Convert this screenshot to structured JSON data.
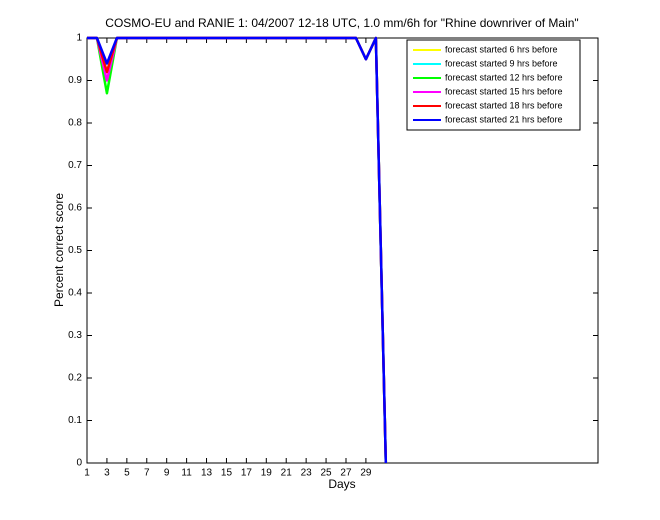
{
  "chart_data": {
    "type": "line",
    "title": "COSMO-EU and RANIE 1: 04/2007 12-18 UTC, 1.0 mm/6h for \"Rhine downriver of Main\"",
    "xlabel": "Days",
    "ylabel": "Percent correct score",
    "x": [
      1,
      2,
      3,
      4,
      5,
      6,
      7,
      8,
      9,
      10,
      11,
      12,
      13,
      14,
      15,
      16,
      17,
      18,
      19,
      20,
      21,
      22,
      23,
      24,
      25,
      26,
      27,
      28,
      29,
      30,
      31
    ],
    "series": [
      {
        "name": "forecast started 6 hrs before",
        "color": "#ffff00",
        "values": [
          1,
          1,
          0.92,
          1,
          1,
          1,
          1,
          1,
          1,
          1,
          1,
          1,
          1,
          1,
          1,
          1,
          1,
          1,
          1,
          1,
          1,
          1,
          1,
          1,
          1,
          1,
          1,
          1,
          0.95,
          1,
          0
        ]
      },
      {
        "name": "forecast started 9 hrs before",
        "color": "#00ffff",
        "values": [
          1,
          1,
          0.92,
          1,
          1,
          1,
          1,
          1,
          1,
          1,
          1,
          1,
          1,
          1,
          1,
          1,
          1,
          1,
          1,
          1,
          1,
          1,
          1,
          1,
          1,
          1,
          1,
          1,
          0.95,
          1,
          0
        ]
      },
      {
        "name": "forecast started 12 hrs before",
        "color": "#00ff00",
        "values": [
          1,
          1,
          0.87,
          1,
          1,
          1,
          1,
          1,
          1,
          1,
          1,
          1,
          1,
          1,
          1,
          1,
          1,
          1,
          1,
          1,
          1,
          1,
          1,
          1,
          1,
          1,
          1,
          1,
          0.95,
          1,
          0
        ]
      },
      {
        "name": "forecast started 15 hrs before",
        "color": "#ff00ff",
        "values": [
          1,
          1,
          0.9,
          1,
          1,
          1,
          1,
          1,
          1,
          1,
          1,
          1,
          1,
          1,
          1,
          1,
          1,
          1,
          1,
          1,
          1,
          1,
          1,
          1,
          1,
          1,
          1,
          1,
          0.95,
          1,
          0
        ]
      },
      {
        "name": "forecast started 18 hrs before",
        "color": "#ff0000",
        "values": [
          1,
          1,
          0.92,
          1,
          1,
          1,
          1,
          1,
          1,
          1,
          1,
          1,
          1,
          1,
          1,
          1,
          1,
          1,
          1,
          1,
          1,
          1,
          1,
          1,
          1,
          1,
          1,
          1,
          0.95,
          1,
          0
        ]
      },
      {
        "name": "forecast started 21 hrs before",
        "color": "#0000ff",
        "values": [
          1,
          1,
          0.94,
          1,
          1,
          1,
          1,
          1,
          1,
          1,
          1,
          1,
          1,
          1,
          1,
          1,
          1,
          1,
          1,
          1,
          1,
          1,
          1,
          1,
          1,
          1,
          1,
          1,
          0.95,
          1,
          0
        ]
      }
    ],
    "xlim": [
      1,
      52.3
    ],
    "xticks": [
      1,
      3,
      5,
      7,
      9,
      11,
      13,
      15,
      17,
      19,
      21,
      23,
      25,
      27,
      29
    ],
    "ylim": [
      0,
      1
    ],
    "yticks": [
      0,
      0.1,
      0.2,
      0.3,
      0.4,
      0.5,
      0.6,
      0.7,
      0.8,
      0.9,
      1
    ],
    "grid": false,
    "legend": "upper right"
  }
}
